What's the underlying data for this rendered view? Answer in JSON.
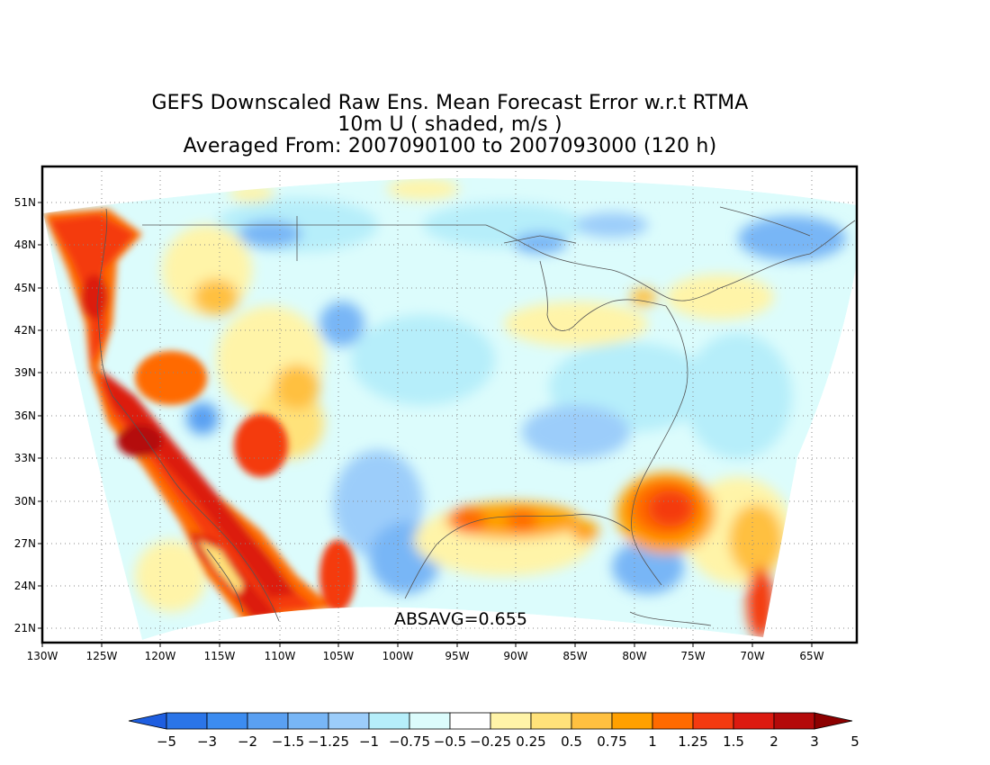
{
  "title": {
    "line1": "GEFS Downscaled Raw Ens. Mean Forecast Error w.r.t RTMA",
    "line2": "10m U ( shaded, m/s )",
    "line3": "Averaged From: 2007090100 to 2007093000 (120 h)"
  },
  "annotation": "ABSAVG=0.655",
  "map": {
    "lon_range": [
      -130,
      -62
    ],
    "lat_range": [
      20,
      52
    ],
    "lon_ticks": [
      "130W",
      "125W",
      "120W",
      "115W",
      "110W",
      "105W",
      "100W",
      "95W",
      "90W",
      "85W",
      "80W",
      "75W",
      "70W",
      "65W"
    ],
    "lat_ticks": [
      "51N",
      "48N",
      "45N",
      "42N",
      "39N",
      "36N",
      "33N",
      "30N",
      "27N",
      "24N",
      "21N"
    ]
  },
  "colorbar": {
    "labels": [
      "−5",
      "−3",
      "−2",
      "−1.5",
      "−1.25",
      "−1",
      "−0.75",
      "−0.5",
      "−0.25",
      "0.25",
      "0.5",
      "0.75",
      "1",
      "1.25",
      "1.5",
      "2",
      "3",
      "5"
    ],
    "colors": [
      "#1e5ee0",
      "#2b75e8",
      "#3c8cf0",
      "#5aa0f2",
      "#78b6f6",
      "#9ccdfa",
      "#b6eefa",
      "#dcfcfc",
      "#ffffff",
      "#fff4a8",
      "#ffe27a",
      "#ffc040",
      "#ffa000",
      "#ff6a00",
      "#f43a10",
      "#dc1a10",
      "#b40a0a",
      "#8c0000"
    ]
  }
}
